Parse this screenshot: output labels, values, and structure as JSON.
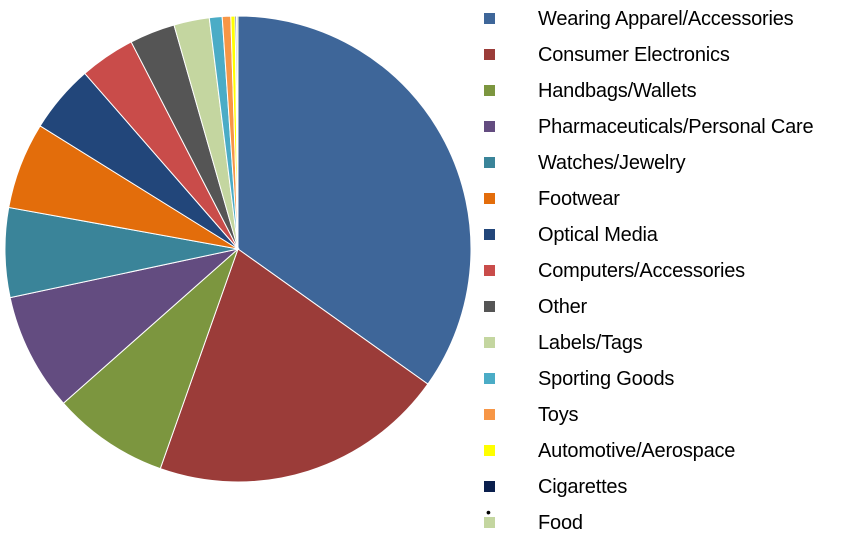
{
  "chart_data": {
    "type": "pie",
    "start_angle_deg": 0,
    "direction": "clockwise",
    "series": [
      {
        "label": "Wearing Apparel/Accessories",
        "value": 35.4,
        "color": "#3E6699"
      },
      {
        "label": "Consumer Electronics",
        "value": 20.9,
        "color": "#9B3C39"
      },
      {
        "label": "Handbags/Wallets",
        "value": 8.2,
        "color": "#7C963F"
      },
      {
        "label": "Pharmaceuticals/Personal Care",
        "value": 8.3,
        "color": "#634C80"
      },
      {
        "label": "Watches/Jewelry",
        "value": 6.3,
        "color": "#3A8499"
      },
      {
        "label": "Footwear",
        "value": 6.1,
        "color": "#E36D0B"
      },
      {
        "label": "Optical Media",
        "value": 4.8,
        "color": "#22467A"
      },
      {
        "label": "Computers/Accessories",
        "value": 3.9,
        "color": "#C94C4A"
      },
      {
        "label": "Other",
        "value": 3.2,
        "color": "#555555"
      },
      {
        "label": "Labels/Tags",
        "value": 2.5,
        "color": "#C4D6A0"
      },
      {
        "label": "Sporting Goods",
        "value": 0.9,
        "color": "#4BACC6"
      },
      {
        "label": "Toys",
        "value": 0.6,
        "color": "#F79646"
      },
      {
        "label": "Automotive/Aerospace",
        "value": 0.3,
        "color": "#FFFF00"
      },
      {
        "label": "Cigarettes",
        "value": 0.1,
        "color": "#0A1F4D"
      },
      {
        "label": "Food",
        "value": 0.1,
        "color": "#C4D6A0"
      }
    ],
    "legend_position": "right",
    "title": ""
  },
  "page": {
    "bullet_mark": "•"
  }
}
